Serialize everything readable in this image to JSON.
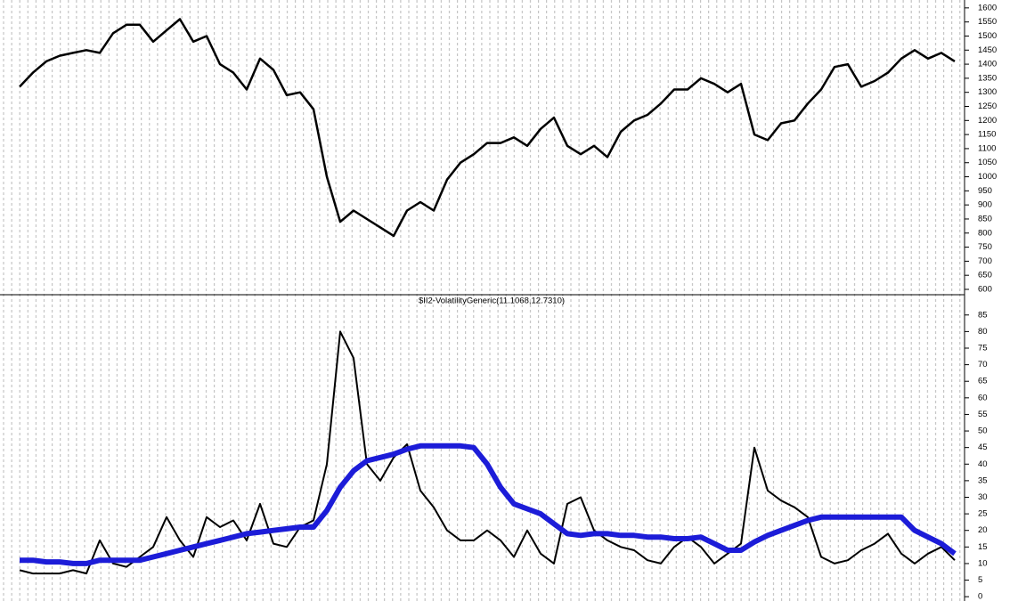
{
  "chart_data": [
    {
      "type": "line",
      "color": "#000000",
      "values": [
        1320,
        1370,
        1410,
        1430,
        1440,
        1450,
        1440,
        1510,
        1540,
        1540,
        1480,
        1520,
        1560,
        1480,
        1500,
        1400,
        1370,
        1310,
        1420,
        1380,
        1290,
        1300,
        1240,
        1000,
        840,
        880,
        850,
        820,
        790,
        880,
        910,
        880,
        990,
        1050,
        1080,
        1120,
        1120,
        1140,
        1110,
        1170,
        1210,
        1110,
        1080,
        1110,
        1070,
        1160,
        1200,
        1220,
        1260,
        1310,
        1310,
        1350,
        1330,
        1300,
        1330,
        1150,
        1130,
        1190,
        1200,
        1260,
        1310,
        1390,
        1400,
        1320,
        1340,
        1370,
        1420,
        1450,
        1420,
        1440,
        1410
      ],
      "ylim": [
        581,
        1628
      ],
      "yticks": [
        600,
        650,
        700,
        750,
        800,
        850,
        900,
        950,
        1000,
        1050,
        1100,
        1150,
        1200,
        1250,
        1300,
        1350,
        1400,
        1450,
        1500,
        1550,
        1600
      ]
    },
    {
      "type": "line",
      "title": "$II2-VolatilityGeneric(11.1068,12.7310)",
      "series": [
        {
          "color": "#000000",
          "values": [
            8,
            7,
            7,
            7,
            8,
            7,
            17,
            10,
            9,
            12,
            15,
            24,
            17,
            12,
            24,
            21,
            23,
            17,
            28,
            16,
            15,
            21,
            23,
            40,
            80,
            72,
            40,
            35,
            42,
            46,
            32,
            27,
            20,
            17,
            17,
            20,
            17,
            12,
            20,
            13,
            10,
            28,
            30,
            20,
            17,
            15,
            14,
            11,
            10,
            15,
            18,
            15,
            10,
            13,
            16,
            45,
            32,
            29,
            27,
            24,
            12,
            10,
            11,
            14,
            16,
            19,
            13,
            10,
            13,
            15,
            11
          ]
        },
        {
          "color": "#1c1cd8",
          "values": [
            11,
            11,
            10.5,
            10.5,
            10,
            10,
            11,
            11,
            11,
            11,
            12,
            13,
            14,
            15,
            16,
            17,
            18,
            19,
            19.5,
            20,
            20.5,
            21,
            21,
            26,
            33,
            38,
            41,
            42,
            43,
            44.5,
            45.5,
            45.5,
            45.5,
            45.5,
            45,
            40,
            33,
            28,
            26.5,
            25,
            22,
            19,
            18.5,
            19,
            19,
            18.5,
            18.5,
            18,
            18,
            17.5,
            17.5,
            18,
            16,
            14,
            14,
            16.5,
            18.5,
            20,
            21.5,
            23,
            24,
            24,
            24,
            24,
            24,
            24,
            24,
            20,
            18,
            16,
            13
          ]
        }
      ],
      "ylim": [
        -1.3,
        88.7
      ],
      "yticks": [
        0,
        5,
        10,
        15,
        20,
        25,
        30,
        35,
        40,
        45,
        50,
        55,
        60,
        65,
        70,
        75,
        80,
        85
      ]
    }
  ]
}
